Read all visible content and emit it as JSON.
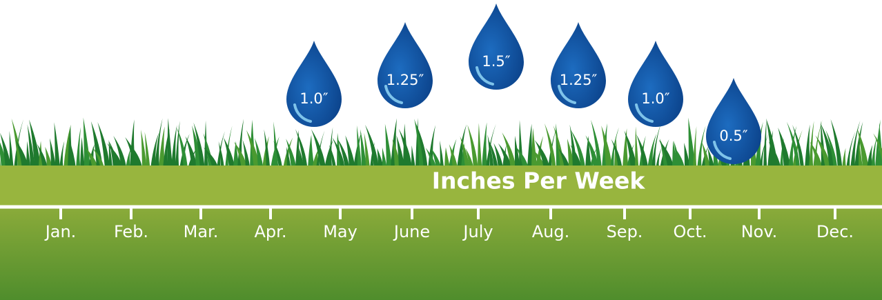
{
  "chart_data": {
    "type": "drop",
    "title": "Inches Per Week",
    "categories": [
      "Jan.",
      "Feb.",
      "Mar.",
      "Apr.",
      "May",
      "June",
      "July",
      "Aug.",
      "Sep.",
      "Oct.",
      "Nov.",
      "Dec."
    ],
    "values": [
      null,
      null,
      null,
      null,
      1.0,
      1.25,
      1.5,
      1.25,
      1.0,
      0.5,
      null,
      null
    ],
    "value_labels": [
      null,
      null,
      null,
      null,
      "1.0″",
      "1.25″",
      "1.5″",
      "1.25″",
      "1.0″",
      "0.5″",
      null,
      null
    ],
    "color": "#0d4f9e"
  }
}
